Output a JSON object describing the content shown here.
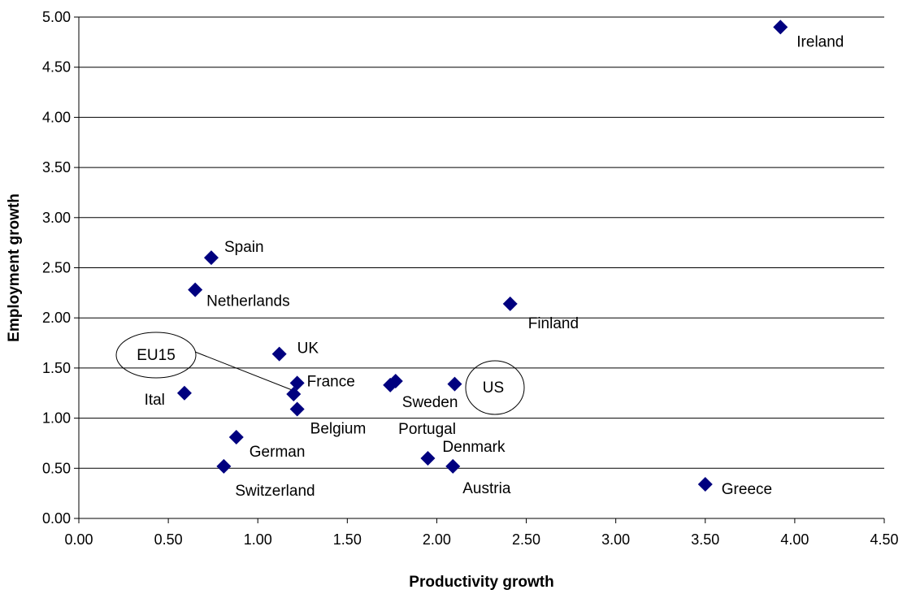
{
  "chart_data": {
    "type": "scatter",
    "title": "",
    "xlabel": "Productivity growth",
    "ylabel": "Employment growth",
    "xlim": [
      0,
      4.5
    ],
    "ylim": [
      0,
      5
    ],
    "x_ticks": [
      "0.00",
      "0.50",
      "1.00",
      "1.50",
      "2.00",
      "2.50",
      "3.00",
      "3.50",
      "4.00",
      "4.50"
    ],
    "y_ticks": [
      "0.00",
      "0.50",
      "1.00",
      "1.50",
      "2.00",
      "2.50",
      "3.00",
      "3.50",
      "4.00",
      "4.50",
      "5.00"
    ],
    "grid": "horizontal",
    "marker": "diamond",
    "marker_color": "#00007f",
    "points": [
      {
        "label": "Ireland",
        "x": 3.92,
        "y": 4.9
      },
      {
        "label": "Spain",
        "x": 0.74,
        "y": 2.6
      },
      {
        "label": "Netherlands",
        "x": 0.65,
        "y": 2.28
      },
      {
        "label": "Finland",
        "x": 2.41,
        "y": 2.14
      },
      {
        "label": "UK",
        "x": 1.12,
        "y": 1.64
      },
      {
        "label": "Ital",
        "x": 0.59,
        "y": 1.25
      },
      {
        "label": "France",
        "x": 1.22,
        "y": 1.35
      },
      {
        "label": "",
        "x": 1.2,
        "y": 1.24
      },
      {
        "label": "Belgium",
        "x": 1.22,
        "y": 1.09
      },
      {
        "label": "Sweden",
        "x": 1.77,
        "y": 1.37
      },
      {
        "label": "Portugal",
        "x": 1.74,
        "y": 1.33
      },
      {
        "label": "",
        "x": 2.1,
        "y": 1.34
      },
      {
        "label": "German",
        "x": 0.88,
        "y": 0.81
      },
      {
        "label": "Switzerland",
        "x": 0.81,
        "y": 0.52
      },
      {
        "label": "Denmark",
        "x": 1.95,
        "y": 0.6
      },
      {
        "label": "Austria",
        "x": 2.09,
        "y": 0.52
      },
      {
        "label": "Greece",
        "x": 3.5,
        "y": 0.34
      }
    ],
    "annotations": [
      {
        "text": "EU15",
        "shape": "ellipse"
      },
      {
        "text": "US",
        "shape": "ellipse"
      }
    ]
  }
}
